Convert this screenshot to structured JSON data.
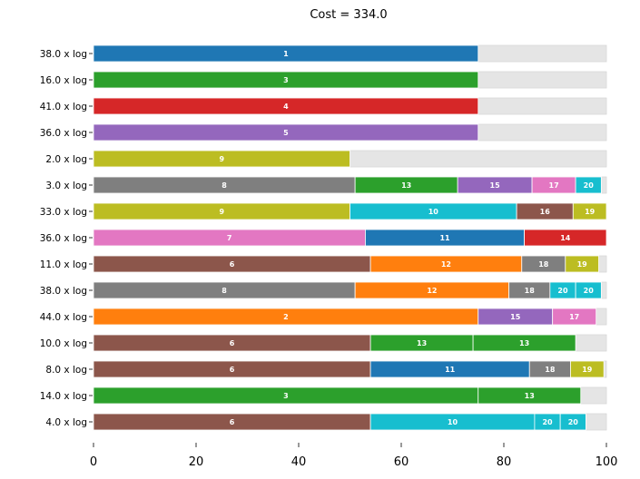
{
  "chart_data": {
    "type": "bar",
    "orientation": "horizontal",
    "stacked": true,
    "title": "Cost = 334.0",
    "xlabel": "",
    "ylabel": "",
    "xlim": [
      0,
      100
    ],
    "xticks": [
      "0",
      "20",
      "40",
      "60",
      "80",
      "100"
    ],
    "background_bar_color": "#e5e5e5",
    "palette": {
      "1": "#1f77b4",
      "2": "#ff7f0e",
      "3": "#2ca02c",
      "4": "#d62728",
      "5": "#9467bd",
      "6": "#8c564b",
      "7": "#e377c2",
      "8": "#7f7f7f",
      "9": "#bcbd22",
      "10": "#17becf",
      "11": "#1f77b4",
      "12": "#ff7f0e",
      "13": "#2ca02c",
      "14": "#d62728",
      "15": "#9467bd",
      "16": "#8c564b",
      "17": "#e377c2",
      "18": "#7f7f7f",
      "19": "#bcbd22",
      "20": "#17becf"
    },
    "rows": [
      {
        "label": "38.0 x log",
        "segments": [
          {
            "id": "1",
            "value": 75
          }
        ]
      },
      {
        "label": "16.0 x log",
        "segments": [
          {
            "id": "3",
            "value": 75
          }
        ]
      },
      {
        "label": "41.0 x log",
        "segments": [
          {
            "id": "4",
            "value": 75
          }
        ]
      },
      {
        "label": "36.0 x log",
        "segments": [
          {
            "id": "5",
            "value": 75
          }
        ]
      },
      {
        "label": "2.0 x log",
        "segments": [
          {
            "id": "9",
            "value": 50
          }
        ]
      },
      {
        "label": "3.0 x log",
        "segments": [
          {
            "id": "8",
            "value": 51
          },
          {
            "id": "13",
            "value": 20
          },
          {
            "id": "15",
            "value": 14.5
          },
          {
            "id": "17",
            "value": 8.5
          },
          {
            "id": "20",
            "value": 5
          }
        ]
      },
      {
        "label": "33.0 x log",
        "segments": [
          {
            "id": "9",
            "value": 50
          },
          {
            "id": "10",
            "value": 32.5
          },
          {
            "id": "16",
            "value": 11
          },
          {
            "id": "19",
            "value": 6.5
          }
        ]
      },
      {
        "label": "36.0 x log",
        "segments": [
          {
            "id": "7",
            "value": 53
          },
          {
            "id": "11",
            "value": 31
          },
          {
            "id": "14",
            "value": 16
          }
        ]
      },
      {
        "label": "11.0 x log",
        "segments": [
          {
            "id": "6",
            "value": 54
          },
          {
            "id": "12",
            "value": 29.5
          },
          {
            "id": "18",
            "value": 8.5
          },
          {
            "id": "19",
            "value": 6.5
          }
        ]
      },
      {
        "label": "38.0 x log",
        "segments": [
          {
            "id": "8",
            "value": 51
          },
          {
            "id": "12",
            "value": 30
          },
          {
            "id": "18",
            "value": 8
          },
          {
            "id": "20",
            "value": 5
          },
          {
            "id": "20",
            "value": 5
          }
        ]
      },
      {
        "label": "44.0 x log",
        "segments": [
          {
            "id": "2",
            "value": 75
          },
          {
            "id": "15",
            "value": 14.5
          },
          {
            "id": "17",
            "value": 8.5
          }
        ]
      },
      {
        "label": "10.0 x log",
        "segments": [
          {
            "id": "6",
            "value": 54
          },
          {
            "id": "13",
            "value": 20
          },
          {
            "id": "13",
            "value": 20
          }
        ]
      },
      {
        "label": "8.0 x log",
        "segments": [
          {
            "id": "6",
            "value": 54
          },
          {
            "id": "11",
            "value": 31
          },
          {
            "id": "18",
            "value": 8
          },
          {
            "id": "19",
            "value": 6.5
          }
        ]
      },
      {
        "label": "14.0 x log",
        "segments": [
          {
            "id": "3",
            "value": 75
          },
          {
            "id": "13",
            "value": 20
          }
        ]
      },
      {
        "label": "4.0 x log",
        "segments": [
          {
            "id": "6",
            "value": 54
          },
          {
            "id": "10",
            "value": 32
          },
          {
            "id": "20",
            "value": 5
          },
          {
            "id": "20",
            "value": 5
          }
        ]
      }
    ]
  }
}
